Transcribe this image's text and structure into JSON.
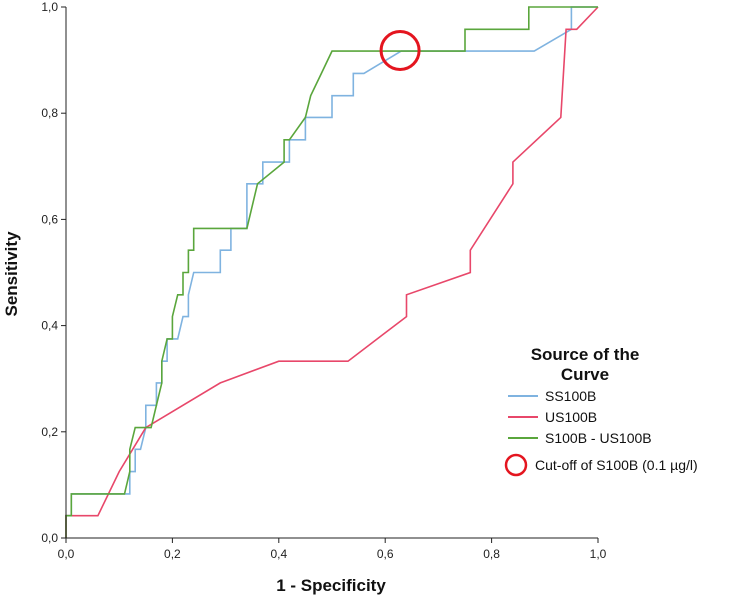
{
  "chart_data": {
    "type": "line",
    "xlabel": "1 - Specificity",
    "ylabel": "Sensitivity",
    "xlim": [
      0,
      1
    ],
    "ylim": [
      0,
      1
    ],
    "xticks": [
      "0,0",
      "0,2",
      "0,4",
      "0,6",
      "0,8",
      "1,0"
    ],
    "yticks": [
      "0,0",
      "0,2",
      "0,4",
      "0,6",
      "0,8",
      "1,0"
    ],
    "grid": false,
    "legend": {
      "title": "Source of the Curve",
      "placement": "right",
      "entries": [
        "SS100B",
        "US100B",
        "S100B - US100B"
      ]
    },
    "series": [
      {
        "name": "SS100B",
        "color": "#7fb3e0",
        "x": [
          0,
          0,
          0.01,
          0.01,
          0.1,
          0.11,
          0.11,
          0.12,
          0.12,
          0.13,
          0.13,
          0.14,
          0.15,
          0.15,
          0.16,
          0.17,
          0.17,
          0.18,
          0.18,
          0.19,
          0.19,
          0.2,
          0.2,
          0.21,
          0.22,
          0.23,
          0.23,
          0.24,
          0.25,
          0.25,
          0.26,
          0.29,
          0.29,
          0.31,
          0.31,
          0.34,
          0.34,
          0.37,
          0.37,
          0.4,
          0.4,
          0.42,
          0.42,
          0.45,
          0.45,
          0.5,
          0.5,
          0.52,
          0.52,
          0.54,
          0.54,
          0.56,
          0.63,
          0.88,
          0.95,
          0.95,
          1
        ],
        "y": [
          0,
          0.042,
          0.042,
          0.083,
          0.083,
          0.083,
          0.083,
          0.083,
          0.125,
          0.125,
          0.167,
          0.167,
          0.208,
          0.25,
          0.25,
          0.25,
          0.292,
          0.292,
          0.333,
          0.333,
          0.375,
          0.375,
          0.375,
          0.375,
          0.417,
          0.417,
          0.458,
          0.5,
          0.5,
          0.5,
          0.5,
          0.5,
          0.542,
          0.542,
          0.583,
          0.583,
          0.667,
          0.667,
          0.708,
          0.708,
          0.708,
          0.708,
          0.75,
          0.75,
          0.792,
          0.792,
          0.833,
          0.833,
          0.833,
          0.833,
          0.875,
          0.875,
          0.917,
          0.917,
          0.958,
          1,
          1
        ]
      },
      {
        "name": "US100B",
        "color": "#e8476a",
        "x": [
          0,
          0,
          0.06,
          0.1,
          0.15,
          0.29,
          0.4,
          0.53,
          0.64,
          0.64,
          0.76,
          0.76,
          0.84,
          0.84,
          0.93,
          0.94,
          0.94,
          0.95,
          0.96,
          1
        ],
        "y": [
          0,
          0.042,
          0.042,
          0.125,
          0.208,
          0.292,
          0.333,
          0.333,
          0.417,
          0.458,
          0.5,
          0.542,
          0.667,
          0.708,
          0.792,
          0.958,
          0.958,
          0.958,
          0.958,
          1
        ]
      },
      {
        "name": "S100B - US100B",
        "color": "#5aa63c",
        "x": [
          0,
          0,
          0.01,
          0.01,
          0.11,
          0.12,
          0.12,
          0.12,
          0.12,
          0.13,
          0.13,
          0.16,
          0.17,
          0.17,
          0.18,
          0.18,
          0.19,
          0.2,
          0.2,
          0.21,
          0.21,
          0.22,
          0.22,
          0.23,
          0.23,
          0.24,
          0.24,
          0.26,
          0.34,
          0.36,
          0.36,
          0.41,
          0.41,
          0.42,
          0.42,
          0.45,
          0.45,
          0.46,
          0.46,
          0.48,
          0.48,
          0.5,
          0.5,
          0.53,
          0.75,
          0.75,
          0.87,
          0.87,
          1
        ],
        "y": [
          0,
          0.042,
          0.042,
          0.083,
          0.083,
          0.125,
          0.125,
          0.167,
          0.167,
          0.208,
          0.208,
          0.208,
          0.25,
          0.25,
          0.292,
          0.333,
          0.375,
          0.375,
          0.417,
          0.458,
          0.458,
          0.458,
          0.5,
          0.5,
          0.542,
          0.542,
          0.583,
          0.583,
          0.583,
          0.667,
          0.667,
          0.708,
          0.75,
          0.75,
          0.75,
          0.792,
          0.792,
          0.833,
          0.833,
          0.875,
          0.875,
          0.917,
          0.917,
          0.917,
          0.917,
          0.958,
          0.958,
          1,
          1
        ]
      }
    ],
    "annotations": [
      {
        "label": "Cut-off of S100B (0.1 µg/l)",
        "marker": "circle",
        "color": "#e4151f",
        "x": 0.628,
        "y": 0.918
      }
    ]
  }
}
